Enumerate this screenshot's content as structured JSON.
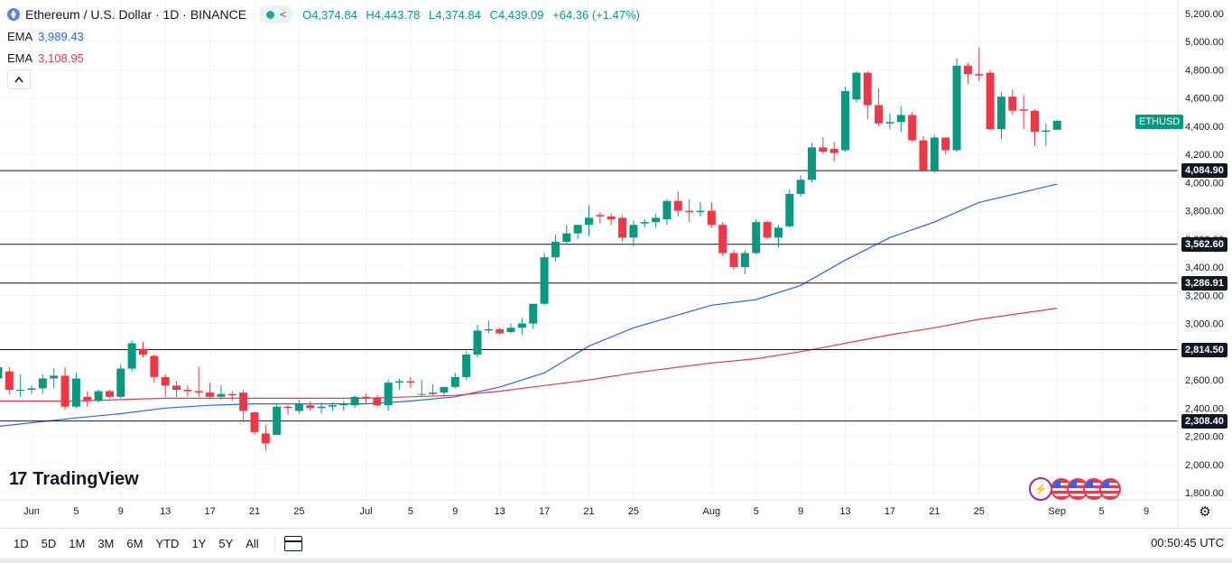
{
  "header": {
    "title": "Ethereum / U.S. Dollar · 1D · BINANCE",
    "open": "O4,374.84",
    "high": "H4,443.78",
    "low": "L4,374.84",
    "close": "C4,439.09",
    "change": "+64.36 (+1.47%)"
  },
  "indicators": [
    {
      "label": "EMA",
      "value": "3,989.43",
      "color": "#2962ff"
    },
    {
      "label": "EMA",
      "value": "3,108.95",
      "color": "#f23645"
    }
  ],
  "symbol_tag": "ETHUSD",
  "levels": [
    {
      "value": 4084.9,
      "label": "4,084.90"
    },
    {
      "value": 3562.6,
      "label": "3,562.60"
    },
    {
      "value": 3286.91,
      "label": "3,286.91"
    },
    {
      "value": 2814.5,
      "label": "2,814.50"
    },
    {
      "value": 2308.4,
      "label": "2,308.40"
    }
  ],
  "logo": "TradingView",
  "range_buttons": [
    "1D",
    "5D",
    "1M",
    "3M",
    "6M",
    "YTD",
    "1Y",
    "5Y",
    "All"
  ],
  "clock": "00:50:45 UTC",
  "colors": {
    "up": "#089981",
    "down": "#f23645",
    "ema_fast": "#2962ff",
    "ema_slow": "#f23645",
    "level_line": "#131722"
  },
  "chart_data": {
    "type": "candlestick",
    "title": "Ethereum / U.S. Dollar · 1D · BINANCE",
    "y_ticks": [
      1800,
      2000,
      2200,
      2400,
      2600,
      2800,
      3000,
      3200,
      3400,
      3600,
      3800,
      4000,
      4200,
      4400,
      4600,
      4800,
      5000,
      5200
    ],
    "ylim": [
      1760,
      5260
    ],
    "x_ticks": [
      {
        "label": "Jun",
        "date": "06-01"
      },
      {
        "label": "5",
        "date": "06-05"
      },
      {
        "label": "9",
        "date": "06-09"
      },
      {
        "label": "13",
        "date": "06-13"
      },
      {
        "label": "17",
        "date": "06-17"
      },
      {
        "label": "21",
        "date": "06-21"
      },
      {
        "label": "25",
        "date": "06-25"
      },
      {
        "label": "Jul",
        "date": "07-01"
      },
      {
        "label": "5",
        "date": "07-05"
      },
      {
        "label": "9",
        "date": "07-09"
      },
      {
        "label": "13",
        "date": "07-13"
      },
      {
        "label": "17",
        "date": "07-17"
      },
      {
        "label": "21",
        "date": "07-21"
      },
      {
        "label": "25",
        "date": "07-25"
      },
      {
        "label": "Aug",
        "date": "08-01"
      },
      {
        "label": "5",
        "date": "08-05"
      },
      {
        "label": "9",
        "date": "08-09"
      },
      {
        "label": "13",
        "date": "08-13"
      },
      {
        "label": "17",
        "date": "08-17"
      },
      {
        "label": "21",
        "date": "08-21"
      },
      {
        "label": "25",
        "date": "08-25"
      },
      {
        "label": "Sep",
        "date": "09-01"
      },
      {
        "label": "5",
        "date": "09-05"
      },
      {
        "label": "9",
        "date": "09-09"
      }
    ],
    "candles": [
      {
        "d": "05-29",
        "o": 2610,
        "h": 2700,
        "l": 2600,
        "c": 2690
      },
      {
        "d": "05-30",
        "o": 2660,
        "h": 2690,
        "l": 2500,
        "c": 2530
      },
      {
        "d": "05-31",
        "o": 2530,
        "h": 2640,
        "l": 2480,
        "c": 2530
      },
      {
        "d": "06-01",
        "o": 2530,
        "h": 2560,
        "l": 2500,
        "c": 2540
      },
      {
        "d": "06-02",
        "o": 2540,
        "h": 2640,
        "l": 2500,
        "c": 2610
      },
      {
        "d": "06-03",
        "o": 2610,
        "h": 2680,
        "l": 2540,
        "c": 2630
      },
      {
        "d": "06-04",
        "o": 2630,
        "h": 2690,
        "l": 2390,
        "c": 2410
      },
      {
        "d": "06-05",
        "o": 2410,
        "h": 2650,
        "l": 2400,
        "c": 2610
      },
      {
        "d": "06-06",
        "o": 2480,
        "h": 2520,
        "l": 2410,
        "c": 2450
      },
      {
        "d": "06-07",
        "o": 2450,
        "h": 2530,
        "l": 2440,
        "c": 2520
      },
      {
        "d": "06-08",
        "o": 2520,
        "h": 2530,
        "l": 2470,
        "c": 2480
      },
      {
        "d": "06-09",
        "o": 2480,
        "h": 2710,
        "l": 2470,
        "c": 2680
      },
      {
        "d": "06-10",
        "o": 2680,
        "h": 2880,
        "l": 2660,
        "c": 2860
      },
      {
        "d": "06-11",
        "o": 2820,
        "h": 2870,
        "l": 2760,
        "c": 2780
      },
      {
        "d": "06-12",
        "o": 2770,
        "h": 2780,
        "l": 2580,
        "c": 2620
      },
      {
        "d": "06-13",
        "o": 2620,
        "h": 2640,
        "l": 2480,
        "c": 2560
      },
      {
        "d": "06-14",
        "o": 2560,
        "h": 2590,
        "l": 2480,
        "c": 2530
      },
      {
        "d": "06-15",
        "o": 2530,
        "h": 2560,
        "l": 2480,
        "c": 2520
      },
      {
        "d": "06-16",
        "o": 2520,
        "h": 2690,
        "l": 2480,
        "c": 2510
      },
      {
        "d": "06-17",
        "o": 2510,
        "h": 2580,
        "l": 2470,
        "c": 2480
      },
      {
        "d": "06-18",
        "o": 2480,
        "h": 2560,
        "l": 2460,
        "c": 2500
      },
      {
        "d": "06-19",
        "o": 2500,
        "h": 2520,
        "l": 2450,
        "c": 2490
      },
      {
        "d": "06-20",
        "o": 2510,
        "h": 2530,
        "l": 2300,
        "c": 2380
      },
      {
        "d": "06-21",
        "o": 2370,
        "h": 2370,
        "l": 2210,
        "c": 2230
      },
      {
        "d": "06-22",
        "o": 2220,
        "h": 2280,
        "l": 2100,
        "c": 2150
      },
      {
        "d": "06-23",
        "o": 2210,
        "h": 2430,
        "l": 2210,
        "c": 2410
      },
      {
        "d": "06-24",
        "o": 2410,
        "h": 2420,
        "l": 2350,
        "c": 2400
      },
      {
        "d": "06-25",
        "o": 2380,
        "h": 2460,
        "l": 2360,
        "c": 2430
      },
      {
        "d": "06-26",
        "o": 2420,
        "h": 2450,
        "l": 2380,
        "c": 2400
      },
      {
        "d": "06-27",
        "o": 2400,
        "h": 2440,
        "l": 2360,
        "c": 2410
      },
      {
        "d": "06-28",
        "o": 2410,
        "h": 2440,
        "l": 2380,
        "c": 2420
      },
      {
        "d": "06-29",
        "o": 2420,
        "h": 2450,
        "l": 2380,
        "c": 2430
      },
      {
        "d": "06-30",
        "o": 2420,
        "h": 2490,
        "l": 2400,
        "c": 2480
      },
      {
        "d": "07-01",
        "o": 2480,
        "h": 2500,
        "l": 2430,
        "c": 2470
      },
      {
        "d": "07-02",
        "o": 2470,
        "h": 2490,
        "l": 2410,
        "c": 2420
      },
      {
        "d": "07-03",
        "o": 2420,
        "h": 2600,
        "l": 2380,
        "c": 2580
      },
      {
        "d": "07-04",
        "o": 2580,
        "h": 2610,
        "l": 2530,
        "c": 2590
      },
      {
        "d": "07-05",
        "o": 2590,
        "h": 2620,
        "l": 2540,
        "c": 2580
      },
      {
        "d": "07-06",
        "o": 2500,
        "h": 2600,
        "l": 2480,
        "c": 2500
      },
      {
        "d": "07-07",
        "o": 2500,
        "h": 2570,
        "l": 2490,
        "c": 2510
      },
      {
        "d": "07-08",
        "o": 2510,
        "h": 2550,
        "l": 2480,
        "c": 2550
      },
      {
        "d": "07-09",
        "o": 2550,
        "h": 2650,
        "l": 2540,
        "c": 2620
      },
      {
        "d": "07-10",
        "o": 2620,
        "h": 2800,
        "l": 2600,
        "c": 2780
      },
      {
        "d": "07-11",
        "o": 2780,
        "h": 2990,
        "l": 2760,
        "c": 2950
      },
      {
        "d": "07-12",
        "o": 2950,
        "h": 3020,
        "l": 2930,
        "c": 2960
      },
      {
        "d": "07-13",
        "o": 2960,
        "h": 2970,
        "l": 2920,
        "c": 2930
      },
      {
        "d": "07-14",
        "o": 2940,
        "h": 3000,
        "l": 2930,
        "c": 2970
      },
      {
        "d": "07-15",
        "o": 2970,
        "h": 3040,
        "l": 2920,
        "c": 3000
      },
      {
        "d": "07-16",
        "o": 3000,
        "h": 3130,
        "l": 2960,
        "c": 3140
      },
      {
        "d": "07-17",
        "o": 3140,
        "h": 3500,
        "l": 3130,
        "c": 3470
      },
      {
        "d": "07-18",
        "o": 3470,
        "h": 3630,
        "l": 3440,
        "c": 3580
      },
      {
        "d": "07-19",
        "o": 3580,
        "h": 3700,
        "l": 3560,
        "c": 3640
      },
      {
        "d": "07-20",
        "o": 3640,
        "h": 3700,
        "l": 3600,
        "c": 3700
      },
      {
        "d": "07-21",
        "o": 3700,
        "h": 3840,
        "l": 3620,
        "c": 3750
      },
      {
        "d": "07-22",
        "o": 3770,
        "h": 3790,
        "l": 3710,
        "c": 3760
      },
      {
        "d": "07-23",
        "o": 3760,
        "h": 3780,
        "l": 3700,
        "c": 3740
      },
      {
        "d": "07-24",
        "o": 3750,
        "h": 3770,
        "l": 3580,
        "c": 3610
      },
      {
        "d": "07-25",
        "o": 3610,
        "h": 3730,
        "l": 3550,
        "c": 3700
      },
      {
        "d": "07-26",
        "o": 3710,
        "h": 3740,
        "l": 3680,
        "c": 3720
      },
      {
        "d": "07-27",
        "o": 3720,
        "h": 3780,
        "l": 3680,
        "c": 3750
      },
      {
        "d": "07-28",
        "o": 3740,
        "h": 3880,
        "l": 3700,
        "c": 3870
      },
      {
        "d": "07-29",
        "o": 3870,
        "h": 3940,
        "l": 3760,
        "c": 3800
      },
      {
        "d": "07-30",
        "o": 3800,
        "h": 3880,
        "l": 3720,
        "c": 3790
      },
      {
        "d": "07-31",
        "o": 3790,
        "h": 3860,
        "l": 3760,
        "c": 3800
      },
      {
        "d": "08-01",
        "o": 3800,
        "h": 3860,
        "l": 3680,
        "c": 3700
      },
      {
        "d": "08-02",
        "o": 3700,
        "h": 3720,
        "l": 3480,
        "c": 3500
      },
      {
        "d": "08-03",
        "o": 3500,
        "h": 3520,
        "l": 3380,
        "c": 3400
      },
      {
        "d": "08-04",
        "o": 3400,
        "h": 3520,
        "l": 3350,
        "c": 3500
      },
      {
        "d": "08-05",
        "o": 3500,
        "h": 3740,
        "l": 3490,
        "c": 3720
      },
      {
        "d": "08-06",
        "o": 3720,
        "h": 3730,
        "l": 3600,
        "c": 3610
      },
      {
        "d": "08-07",
        "o": 3610,
        "h": 3700,
        "l": 3540,
        "c": 3680
      },
      {
        "d": "08-08",
        "o": 3690,
        "h": 3950,
        "l": 3680,
        "c": 3920
      },
      {
        "d": "08-09",
        "o": 3920,
        "h": 4050,
        "l": 3900,
        "c": 4020
      },
      {
        "d": "08-10",
        "o": 4020,
        "h": 4280,
        "l": 4000,
        "c": 4250
      },
      {
        "d": "08-11",
        "o": 4250,
        "h": 4320,
        "l": 4200,
        "c": 4220
      },
      {
        "d": "08-12",
        "o": 4240,
        "h": 4290,
        "l": 4150,
        "c": 4210
      },
      {
        "d": "08-13",
        "o": 4230,
        "h": 4680,
        "l": 4220,
        "c": 4650
      },
      {
        "d": "08-14",
        "o": 4590,
        "h": 4790,
        "l": 4570,
        "c": 4780
      },
      {
        "d": "08-15",
        "o": 4780,
        "h": 4790,
        "l": 4450,
        "c": 4550
      },
      {
        "d": "08-16",
        "o": 4550,
        "h": 4670,
        "l": 4400,
        "c": 4420
      },
      {
        "d": "08-17",
        "o": 4420,
        "h": 4490,
        "l": 4380,
        "c": 4430
      },
      {
        "d": "08-18",
        "o": 4430,
        "h": 4540,
        "l": 4360,
        "c": 4480
      },
      {
        "d": "08-19",
        "o": 4480,
        "h": 4500,
        "l": 4290,
        "c": 4300
      },
      {
        "d": "08-20",
        "o": 4300,
        "h": 4330,
        "l": 4080,
        "c": 4080
      },
      {
        "d": "08-21",
        "o": 4080,
        "h": 4340,
        "l": 4070,
        "c": 4320
      },
      {
        "d": "08-22",
        "o": 4320,
        "h": 4320,
        "l": 4200,
        "c": 4230
      },
      {
        "d": "08-23",
        "o": 4230,
        "h": 4880,
        "l": 4220,
        "c": 4830
      },
      {
        "d": "08-24",
        "o": 4830,
        "h": 4850,
        "l": 4700,
        "c": 4770
      },
      {
        "d": "08-25",
        "o": 4770,
        "h": 4960,
        "l": 4720,
        "c": 4760
      },
      {
        "d": "08-26",
        "o": 4780,
        "h": 4800,
        "l": 4370,
        "c": 4380
      },
      {
        "d": "08-27",
        "o": 4380,
        "h": 4640,
        "l": 4310,
        "c": 4610
      },
      {
        "d": "08-28",
        "o": 4610,
        "h": 4660,
        "l": 4480,
        "c": 4510
      },
      {
        "d": "08-29",
        "o": 4520,
        "h": 4620,
        "l": 4380,
        "c": 4510
      },
      {
        "d": "08-30",
        "o": 4510,
        "h": 4520,
        "l": 4260,
        "c": 4360
      },
      {
        "d": "08-31",
        "o": 4360,
        "h": 4420,
        "l": 4260,
        "c": 4370
      },
      {
        "d": "09-01",
        "o": 4374.84,
        "h": 4443.78,
        "l": 4374.84,
        "c": 4439.09
      }
    ],
    "ema_fast": {
      "name": "EMA",
      "points": [
        [
          "05-29",
          2270
        ],
        [
          "06-05",
          2330
        ],
        [
          "06-09",
          2360
        ],
        [
          "06-13",
          2400
        ],
        [
          "06-17",
          2420
        ],
        [
          "06-21",
          2430
        ],
        [
          "06-25",
          2430
        ],
        [
          "07-01",
          2430
        ],
        [
          "07-05",
          2450
        ],
        [
          "07-09",
          2480
        ],
        [
          "07-13",
          2550
        ],
        [
          "07-17",
          2650
        ],
        [
          "07-21",
          2840
        ],
        [
          "07-25",
          2970
        ],
        [
          "08-01",
          3130
        ],
        [
          "08-05",
          3170
        ],
        [
          "08-09",
          3270
        ],
        [
          "08-13",
          3450
        ],
        [
          "08-17",
          3610
        ],
        [
          "08-21",
          3720
        ],
        [
          "08-25",
          3860
        ],
        [
          "09-01",
          3989.43
        ]
      ]
    },
    "ema_slow": {
      "name": "EMA",
      "points": [
        [
          "05-29",
          2450
        ],
        [
          "06-05",
          2450
        ],
        [
          "06-09",
          2460
        ],
        [
          "06-13",
          2470
        ],
        [
          "06-17",
          2470
        ],
        [
          "06-21",
          2470
        ],
        [
          "06-25",
          2470
        ],
        [
          "07-01",
          2470
        ],
        [
          "07-05",
          2480
        ],
        [
          "07-09",
          2490
        ],
        [
          "07-13",
          2520
        ],
        [
          "07-17",
          2560
        ],
        [
          "07-21",
          2600
        ],
        [
          "07-25",
          2650
        ],
        [
          "08-01",
          2720
        ],
        [
          "08-05",
          2750
        ],
        [
          "08-09",
          2800
        ],
        [
          "08-13",
          2860
        ],
        [
          "08-17",
          2920
        ],
        [
          "08-21",
          2970
        ],
        [
          "08-25",
          3030
        ],
        [
          "09-01",
          3108.95
        ]
      ]
    }
  }
}
